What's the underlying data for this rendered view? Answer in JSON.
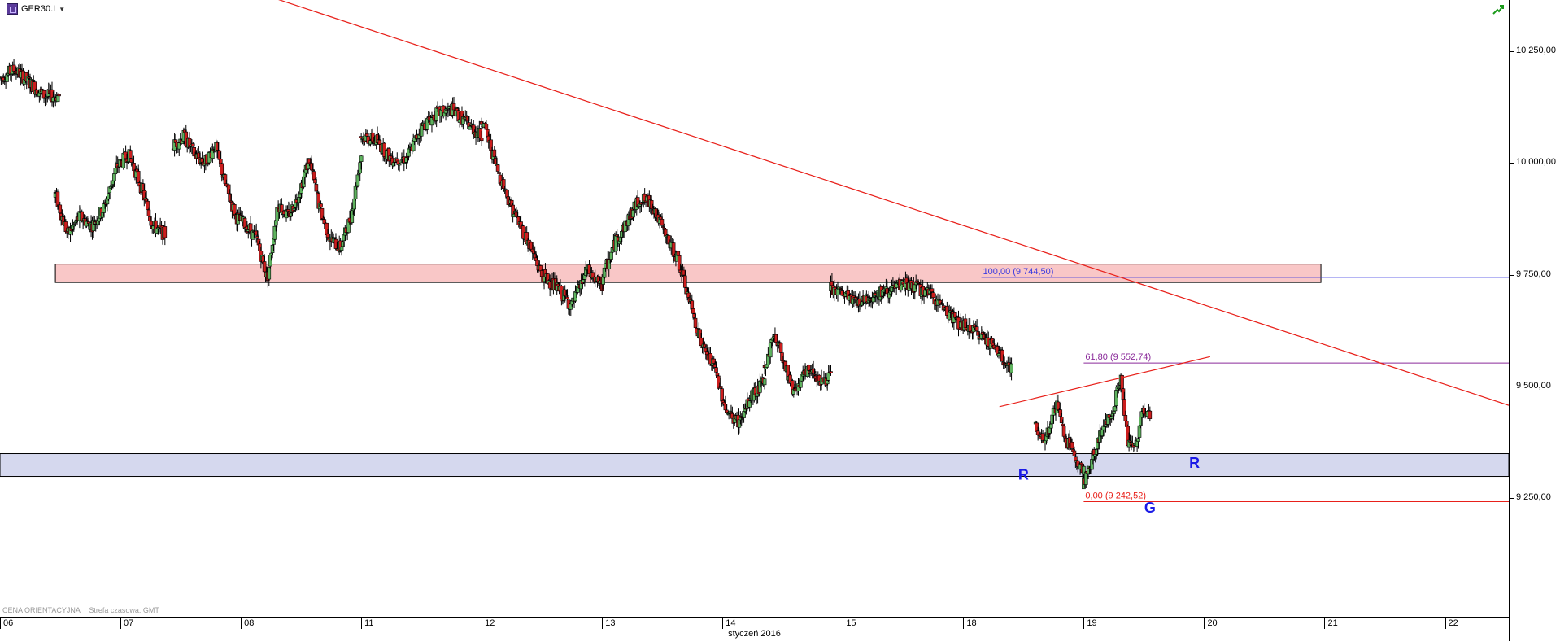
{
  "header": {
    "symbol": "GER30.I",
    "dropdown_icon": "caret-down-icon",
    "connection_icon": "connection-status-icon"
  },
  "footer": {
    "price_type": "CENA ORIENTACYJNA",
    "timezone": "Strefa czasowa: GMT"
  },
  "colors": {
    "up_candle": "#5fb35f",
    "down_candle": "#cc1e1e",
    "trendline": "#e8201a",
    "resistance_zone": "#f9c7c7",
    "support_zone": "#d5d8ee",
    "fib_100": "#3a3ae0",
    "fib_61": "#8a2a9a",
    "fib_0": "#e8201a",
    "pattern_labels": "#1a1ae6"
  },
  "chart_data": {
    "type": "candlestick",
    "instrument": "GER30.I",
    "month_label": "styczeń 2016",
    "x_ticks": [
      "06",
      "07",
      "08",
      "11",
      "12",
      "13",
      "14",
      "15",
      "18",
      "19",
      "20",
      "21",
      "22"
    ],
    "y_ticks": [
      "10 250,00",
      "10 000,00",
      "9 750,00",
      "9 500,00",
      "9 250,00"
    ],
    "y_tick_values": [
      10250,
      10000,
      9750,
      9500,
      9250
    ],
    "ylim": [
      8985,
      10365
    ],
    "x_range": [
      0,
      12.53
    ],
    "grid": false,
    "series_segments": [
      {
        "x": [
          0.0,
          0.49
        ],
        "anchors": [
          10190,
          10210,
          10180,
          10150,
          10150
        ]
      },
      {
        "x": [
          0.46,
          1.37
        ],
        "anchors": [
          9930,
          9840,
          9880,
          9860,
          9900,
          9990,
          10020,
          9950,
          9860,
          9840
        ]
      },
      {
        "x": [
          1.44,
          3.0
        ],
        "anchors": [
          10040,
          10060,
          10020,
          10000,
          10040,
          9950,
          9880,
          9860,
          9830,
          9740,
          9910,
          9880,
          9930,
          10010,
          9900,
          9830,
          9810,
          9880,
          10020
        ]
      },
      {
        "x": [
          3.0,
          4.0
        ],
        "anchors": [
          10060,
          10050,
          10010,
          10010,
          10080,
          10110,
          10120,
          10090,
          10060
        ]
      },
      {
        "x": [
          4.0,
          5.0
        ],
        "anchors": [
          10100,
          9990,
          9900,
          9830,
          9750,
          9720,
          9680,
          9760,
          9720
        ]
      },
      {
        "x": [
          5.0,
          6.35
        ],
        "anchors": [
          9740,
          9820,
          9870,
          9920,
          9910,
          9840,
          9790,
          9690,
          9590,
          9540,
          9440,
          9420,
          9480,
          9510
        ]
      },
      {
        "x": [
          6.35,
          6.9
        ],
        "anchors": [
          9540,
          9620,
          9560,
          9490,
          9520,
          9540,
          9510,
          9525
        ]
      },
      {
        "x": [
          6.9,
          8.4
        ],
        "anchors": [
          9720,
          9690,
          9710,
          9730,
          9700,
          9640,
          9610,
          9540
        ]
      },
      {
        "x": [
          8.6,
          8.7
        ],
        "anchors": [
          9420,
          9380,
          9390,
          9380,
          9400
        ]
      },
      {
        "x": [
          8.7,
          9.0
        ],
        "anchors": [
          9400,
          9460,
          9380,
          9350,
          9310
        ]
      },
      {
        "x": [
          9.0,
          9.55
        ],
        "anchors": [
          9280,
          9330,
          9380,
          9420,
          9450,
          9520,
          9380,
          9360,
          9450,
          9440
        ]
      }
    ],
    "zones": [
      {
        "kind": "resistance",
        "x": [
          0.46,
          10.97
        ],
        "y": [
          9733,
          9774
        ]
      },
      {
        "kind": "support",
        "x": [
          0,
          12.53
        ],
        "y": [
          9299,
          9350
        ]
      }
    ],
    "fibonacci": [
      {
        "label": "100,00 (9 744,50)",
        "value": 9744.5,
        "kind": "fib_100"
      },
      {
        "label": "61,80 (9 552,74)",
        "value": 9552.74,
        "kind": "fib_61"
      },
      {
        "label": "0,00 (9 242,52)",
        "value": 9242.52,
        "kind": "fib_0"
      }
    ],
    "trendlines": [
      {
        "kind": "descending",
        "points": [
          [
            2.2,
            10376
          ],
          [
            12.53,
            9458
          ]
        ]
      },
      {
        "kind": "ascending",
        "points": [
          [
            8.3,
            9455
          ],
          [
            10.05,
            9567
          ]
        ]
      }
    ],
    "pattern_labels": [
      {
        "text": "R",
        "x": 8.5,
        "y": 9292
      },
      {
        "text": "G",
        "x": 9.55,
        "y": 9218
      },
      {
        "text": "R",
        "x": 9.92,
        "y": 9318
      }
    ]
  }
}
